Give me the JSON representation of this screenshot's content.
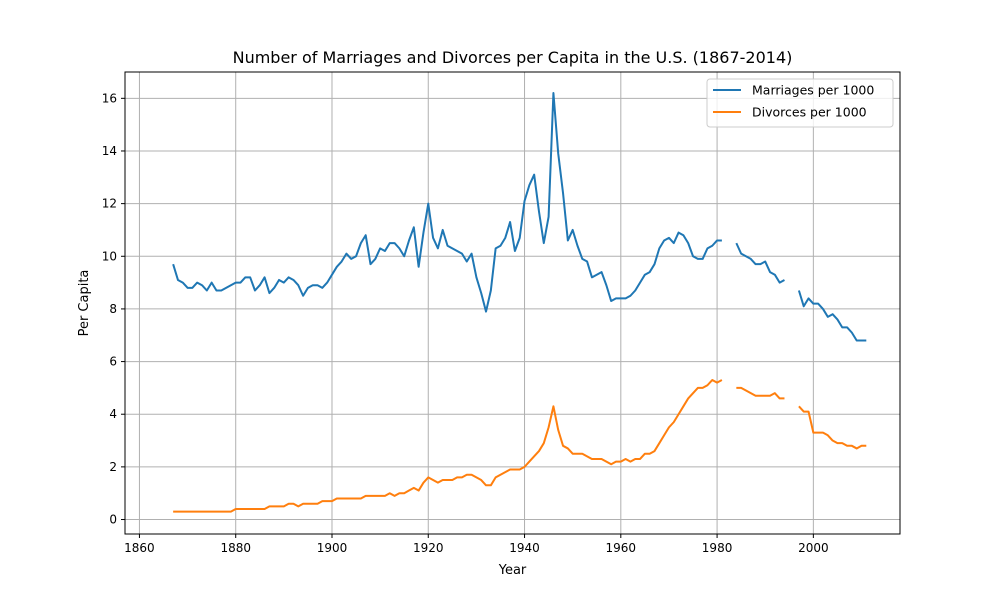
{
  "chart_data": {
    "type": "line",
    "title": "Number of Marriages and Divorces per Capita in the U.S. (1867-2014)",
    "xlabel": "Year",
    "ylabel": "Per Capita",
    "xlim": [
      1857,
      2018
    ],
    "ylim": [
      -0.55,
      17
    ],
    "x_ticks": [
      1860,
      1880,
      1900,
      1920,
      1940,
      1960,
      1980,
      2000
    ],
    "y_ticks": [
      0,
      2,
      4,
      6,
      8,
      10,
      12,
      14,
      16
    ],
    "grid": true,
    "legend_position": "top-right",
    "series": [
      {
        "name": "Marriages per 1000",
        "color": "#1f77b4",
        "segments": [
          [
            [
              1867,
              9.7
            ],
            [
              1868,
              9.1
            ],
            [
              1869,
              9.0
            ],
            [
              1870,
              8.8
            ],
            [
              1871,
              8.8
            ],
            [
              1872,
              9.0
            ],
            [
              1873,
              8.9
            ],
            [
              1874,
              8.7
            ],
            [
              1875,
              9.0
            ],
            [
              1876,
              8.7
            ],
            [
              1877,
              8.7
            ],
            [
              1878,
              8.8
            ],
            [
              1879,
              8.9
            ],
            [
              1880,
              9.0
            ],
            [
              1881,
              9.0
            ],
            [
              1882,
              9.2
            ],
            [
              1883,
              9.2
            ],
            [
              1884,
              8.7
            ],
            [
              1885,
              8.9
            ],
            [
              1886,
              9.2
            ],
            [
              1887,
              8.6
            ],
            [
              1888,
              8.8
            ],
            [
              1889,
              9.1
            ],
            [
              1890,
              9.0
            ],
            [
              1891,
              9.2
            ],
            [
              1892,
              9.1
            ],
            [
              1893,
              8.9
            ],
            [
              1894,
              8.5
            ],
            [
              1895,
              8.8
            ],
            [
              1896,
              8.9
            ],
            [
              1897,
              8.9
            ],
            [
              1898,
              8.8
            ],
            [
              1899,
              9.0
            ],
            [
              1900,
              9.3
            ],
            [
              1901,
              9.6
            ],
            [
              1902,
              9.8
            ],
            [
              1903,
              10.1
            ],
            [
              1904,
              9.9
            ],
            [
              1905,
              10.0
            ],
            [
              1906,
              10.5
            ],
            [
              1907,
              10.8
            ],
            [
              1908,
              9.7
            ],
            [
              1909,
              9.9
            ],
            [
              1910,
              10.3
            ],
            [
              1911,
              10.2
            ],
            [
              1912,
              10.5
            ],
            [
              1913,
              10.5
            ],
            [
              1914,
              10.3
            ],
            [
              1915,
              10.0
            ],
            [
              1916,
              10.6
            ],
            [
              1917,
              11.1
            ],
            [
              1918,
              9.6
            ],
            [
              1919,
              10.9
            ],
            [
              1920,
              12.0
            ],
            [
              1921,
              10.7
            ],
            [
              1922,
              10.3
            ],
            [
              1923,
              11.0
            ],
            [
              1924,
              10.4
            ],
            [
              1925,
              10.3
            ],
            [
              1926,
              10.2
            ],
            [
              1927,
              10.1
            ],
            [
              1928,
              9.8
            ],
            [
              1929,
              10.1
            ],
            [
              1930,
              9.2
            ],
            [
              1931,
              8.6
            ],
            [
              1932,
              7.9
            ],
            [
              1933,
              8.7
            ],
            [
              1934,
              10.3
            ],
            [
              1935,
              10.4
            ],
            [
              1936,
              10.7
            ],
            [
              1937,
              11.3
            ],
            [
              1938,
              10.2
            ],
            [
              1939,
              10.7
            ],
            [
              1940,
              12.1
            ],
            [
              1941,
              12.7
            ],
            [
              1942,
              13.1
            ],
            [
              1943,
              11.7
            ],
            [
              1944,
              10.5
            ],
            [
              1945,
              11.5
            ],
            [
              1946,
              16.2
            ],
            [
              1947,
              13.9
            ],
            [
              1948,
              12.4
            ],
            [
              1949,
              10.6
            ],
            [
              1950,
              11.0
            ],
            [
              1951,
              10.4
            ],
            [
              1952,
              9.9
            ],
            [
              1953,
              9.8
            ],
            [
              1954,
              9.2
            ],
            [
              1955,
              9.3
            ],
            [
              1956,
              9.4
            ],
            [
              1957,
              8.9
            ],
            [
              1958,
              8.3
            ],
            [
              1959,
              8.4
            ],
            [
              1960,
              8.4
            ],
            [
              1961,
              8.4
            ],
            [
              1962,
              8.5
            ],
            [
              1963,
              8.7
            ],
            [
              1964,
              9.0
            ],
            [
              1965,
              9.3
            ],
            [
              1966,
              9.4
            ],
            [
              1967,
              9.7
            ],
            [
              1968,
              10.3
            ],
            [
              1969,
              10.6
            ],
            [
              1970,
              10.7
            ],
            [
              1971,
              10.5
            ],
            [
              1972,
              10.9
            ],
            [
              1973,
              10.8
            ],
            [
              1974,
              10.5
            ],
            [
              1975,
              10.0
            ],
            [
              1976,
              9.9
            ],
            [
              1977,
              9.9
            ],
            [
              1978,
              10.3
            ],
            [
              1979,
              10.4
            ],
            [
              1980,
              10.6
            ],
            [
              1981,
              10.6
            ]
          ],
          [
            [
              1984,
              10.5
            ],
            [
              1985,
              10.1
            ],
            [
              1986,
              10.0
            ],
            [
              1987,
              9.9
            ],
            [
              1988,
              9.7
            ],
            [
              1989,
              9.7
            ],
            [
              1990,
              9.8
            ],
            [
              1991,
              9.4
            ],
            [
              1992,
              9.3
            ],
            [
              1993,
              9.0
            ],
            [
              1994,
              9.1
            ]
          ],
          [
            [
              1997,
              8.7
            ],
            [
              1998,
              8.1
            ],
            [
              1999,
              8.4
            ],
            [
              2000,
              8.2
            ],
            [
              2001,
              8.2
            ],
            [
              2002,
              8.0
            ],
            [
              2003,
              7.7
            ],
            [
              2004,
              7.8
            ],
            [
              2005,
              7.6
            ],
            [
              2006,
              7.3
            ],
            [
              2007,
              7.3
            ],
            [
              2008,
              7.1
            ],
            [
              2009,
              6.8
            ],
            [
              2010,
              6.8
            ],
            [
              2011,
              6.8
            ]
          ]
        ]
      },
      {
        "name": "Divorces per 1000",
        "color": "#ff7f0e",
        "segments": [
          [
            [
              1867,
              0.3
            ],
            [
              1868,
              0.3
            ],
            [
              1869,
              0.3
            ],
            [
              1870,
              0.3
            ],
            [
              1871,
              0.3
            ],
            [
              1872,
              0.3
            ],
            [
              1873,
              0.3
            ],
            [
              1874,
              0.3
            ],
            [
              1875,
              0.3
            ],
            [
              1876,
              0.3
            ],
            [
              1877,
              0.3
            ],
            [
              1878,
              0.3
            ],
            [
              1879,
              0.3
            ],
            [
              1880,
              0.4
            ],
            [
              1881,
              0.4
            ],
            [
              1882,
              0.4
            ],
            [
              1883,
              0.4
            ],
            [
              1884,
              0.4
            ],
            [
              1885,
              0.4
            ],
            [
              1886,
              0.4
            ],
            [
              1887,
              0.5
            ],
            [
              1888,
              0.5
            ],
            [
              1889,
              0.5
            ],
            [
              1890,
              0.5
            ],
            [
              1891,
              0.6
            ],
            [
              1892,
              0.6
            ],
            [
              1893,
              0.5
            ],
            [
              1894,
              0.6
            ],
            [
              1895,
              0.6
            ],
            [
              1896,
              0.6
            ],
            [
              1897,
              0.6
            ],
            [
              1898,
              0.7
            ],
            [
              1899,
              0.7
            ],
            [
              1900,
              0.7
            ],
            [
              1901,
              0.8
            ],
            [
              1902,
              0.8
            ],
            [
              1903,
              0.8
            ],
            [
              1904,
              0.8
            ],
            [
              1905,
              0.8
            ],
            [
              1906,
              0.8
            ],
            [
              1907,
              0.9
            ],
            [
              1908,
              0.9
            ],
            [
              1909,
              0.9
            ],
            [
              1910,
              0.9
            ],
            [
              1911,
              0.9
            ],
            [
              1912,
              1.0
            ],
            [
              1913,
              0.9
            ],
            [
              1914,
              1.0
            ],
            [
              1915,
              1.0
            ],
            [
              1916,
              1.1
            ],
            [
              1917,
              1.2
            ],
            [
              1918,
              1.1
            ],
            [
              1919,
              1.4
            ],
            [
              1920,
              1.6
            ],
            [
              1921,
              1.5
            ],
            [
              1922,
              1.4
            ],
            [
              1923,
              1.5
            ],
            [
              1924,
              1.5
            ],
            [
              1925,
              1.5
            ],
            [
              1926,
              1.6
            ],
            [
              1927,
              1.6
            ],
            [
              1928,
              1.7
            ],
            [
              1929,
              1.7
            ],
            [
              1930,
              1.6
            ],
            [
              1931,
              1.5
            ],
            [
              1932,
              1.3
            ],
            [
              1933,
              1.3
            ],
            [
              1934,
              1.6
            ],
            [
              1935,
              1.7
            ],
            [
              1936,
              1.8
            ],
            [
              1937,
              1.9
            ],
            [
              1938,
              1.9
            ],
            [
              1939,
              1.9
            ],
            [
              1940,
              2.0
            ],
            [
              1941,
              2.2
            ],
            [
              1942,
              2.4
            ],
            [
              1943,
              2.6
            ],
            [
              1944,
              2.9
            ],
            [
              1945,
              3.5
            ],
            [
              1946,
              4.3
            ],
            [
              1947,
              3.4
            ],
            [
              1948,
              2.8
            ],
            [
              1949,
              2.7
            ],
            [
              1950,
              2.5
            ],
            [
              1951,
              2.5
            ],
            [
              1952,
              2.5
            ],
            [
              1953,
              2.4
            ],
            [
              1954,
              2.3
            ],
            [
              1955,
              2.3
            ],
            [
              1956,
              2.3
            ],
            [
              1957,
              2.2
            ],
            [
              1958,
              2.1
            ],
            [
              1959,
              2.2
            ],
            [
              1960,
              2.2
            ],
            [
              1961,
              2.3
            ],
            [
              1962,
              2.2
            ],
            [
              1963,
              2.3
            ],
            [
              1964,
              2.3
            ],
            [
              1965,
              2.5
            ],
            [
              1966,
              2.5
            ],
            [
              1967,
              2.6
            ],
            [
              1968,
              2.9
            ],
            [
              1969,
              3.2
            ],
            [
              1970,
              3.5
            ],
            [
              1971,
              3.7
            ],
            [
              1972,
              4.0
            ],
            [
              1973,
              4.3
            ],
            [
              1974,
              4.6
            ],
            [
              1975,
              4.8
            ],
            [
              1976,
              5.0
            ],
            [
              1977,
              5.0
            ],
            [
              1978,
              5.1
            ],
            [
              1979,
              5.3
            ],
            [
              1980,
              5.2
            ],
            [
              1981,
              5.3
            ]
          ],
          [
            [
              1984,
              5.0
            ],
            [
              1985,
              5.0
            ],
            [
              1986,
              4.9
            ],
            [
              1987,
              4.8
            ],
            [
              1988,
              4.7
            ],
            [
              1989,
              4.7
            ],
            [
              1990,
              4.7
            ],
            [
              1991,
              4.7
            ],
            [
              1992,
              4.8
            ],
            [
              1993,
              4.6
            ],
            [
              1994,
              4.6
            ]
          ],
          [
            [
              1997,
              4.3
            ],
            [
              1998,
              4.1
            ],
            [
              1999,
              4.1
            ],
            [
              2000,
              3.3
            ],
            [
              2001,
              3.3
            ],
            [
              2002,
              3.3
            ],
            [
              2003,
              3.2
            ],
            [
              2004,
              3.0
            ],
            [
              2005,
              2.9
            ],
            [
              2006,
              2.9
            ],
            [
              2007,
              2.8
            ],
            [
              2008,
              2.8
            ],
            [
              2009,
              2.7
            ],
            [
              2010,
              2.8
            ],
            [
              2011,
              2.8
            ]
          ]
        ]
      }
    ]
  }
}
